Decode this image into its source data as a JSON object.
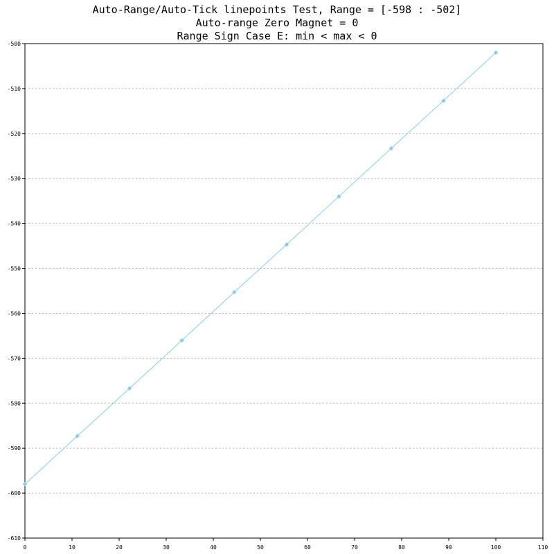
{
  "chart_data": {
    "type": "line",
    "title_lines": [
      "Auto-Range/Auto-Tick linepoints Test, Range = [-598 : -502]",
      "Auto-range Zero Magnet = 0",
      "Range Sign Case E: min < max < 0"
    ],
    "xlabel": "",
    "ylabel": "",
    "xlim": [
      0,
      110
    ],
    "ylim": [
      -610,
      -500
    ],
    "x_ticks": [
      0,
      10,
      20,
      30,
      40,
      50,
      60,
      70,
      80,
      90,
      100,
      110
    ],
    "y_ticks": [
      -500,
      -510,
      -520,
      -530,
      -540,
      -550,
      -560,
      -570,
      -580,
      -590,
      -600,
      -610
    ],
    "grid": "horizontal dashed",
    "series": [
      {
        "color": "#87ceeb",
        "marker": "diamond",
        "x": [
          0,
          11.11,
          22.22,
          33.33,
          44.44,
          55.56,
          66.67,
          77.78,
          88.89,
          100
        ],
        "y": [
          -598,
          -587.3,
          -576.7,
          -566,
          -555.3,
          -544.7,
          -534,
          -523.3,
          -512.7,
          -502
        ]
      }
    ]
  }
}
